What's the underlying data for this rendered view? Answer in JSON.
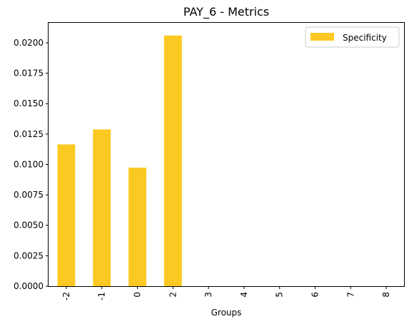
{
  "chart_data": {
    "type": "bar",
    "title": "PAY_6 - Metrics",
    "xlabel": "Groups",
    "ylabel": "",
    "categories": [
      "-2",
      "-1",
      "0",
      "2",
      "3",
      "4",
      "5",
      "6",
      "7",
      "8"
    ],
    "series": [
      {
        "name": "Specificity",
        "color": "#fcc923",
        "values": [
          0.01165,
          0.01288,
          0.00974,
          0.0206,
          0,
          0,
          0,
          0,
          0,
          0
        ]
      }
    ],
    "ylim": [
      0,
      0.0217
    ],
    "yticks": [
      "0.0000",
      "0.0025",
      "0.0050",
      "0.0075",
      "0.0100",
      "0.0125",
      "0.0150",
      "0.0175",
      "0.0200"
    ],
    "grid": false,
    "legend": "top-right"
  }
}
